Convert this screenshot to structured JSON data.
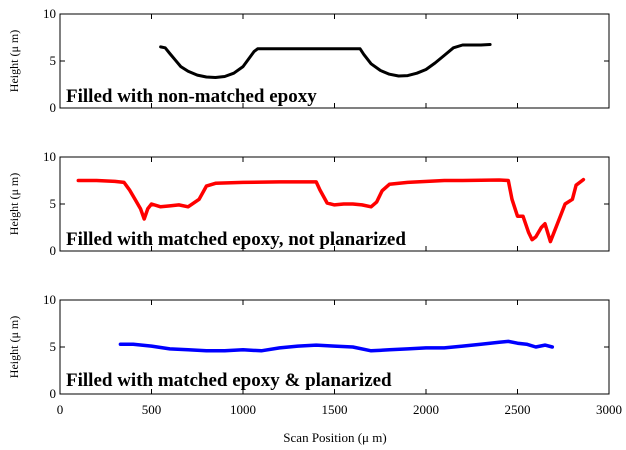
{
  "figure": {
    "xlabel": "Scan Position (μ m)",
    "xticks": [
      "0",
      "500",
      "1000",
      "1500",
      "2000",
      "2500",
      "3000"
    ]
  },
  "chart_data": [
    {
      "type": "line",
      "annotation": "Filled with non-matched epoxy",
      "ylabel": "Height (μ m)",
      "xlim": [
        0,
        3000
      ],
      "ylim": [
        0,
        10
      ],
      "yticks": [
        "0",
        "5",
        "10"
      ],
      "xtick_labels_shown": false,
      "grid": false,
      "series": [
        {
          "color": "#000000",
          "points": [
            [
              550,
              6.5
            ],
            [
              575,
              6.4
            ],
            [
              600,
              5.8
            ],
            [
              630,
              5.1
            ],
            [
              660,
              4.4
            ],
            [
              700,
              3.9
            ],
            [
              750,
              3.5
            ],
            [
              800,
              3.3
            ],
            [
              850,
              3.25
            ],
            [
              900,
              3.35
            ],
            [
              950,
              3.7
            ],
            [
              1000,
              4.4
            ],
            [
              1030,
              5.2
            ],
            [
              1060,
              6.0
            ],
            [
              1080,
              6.3
            ],
            [
              1200,
              6.3
            ],
            [
              1400,
              6.3
            ],
            [
              1550,
              6.3
            ],
            [
              1640,
              6.3
            ],
            [
              1660,
              5.7
            ],
            [
              1700,
              4.7
            ],
            [
              1750,
              4.0
            ],
            [
              1800,
              3.6
            ],
            [
              1850,
              3.4
            ],
            [
              1900,
              3.45
            ],
            [
              1950,
              3.7
            ],
            [
              2000,
              4.1
            ],
            [
              2050,
              4.8
            ],
            [
              2100,
              5.6
            ],
            [
              2150,
              6.4
            ],
            [
              2200,
              6.7
            ],
            [
              2300,
              6.7
            ],
            [
              2350,
              6.75
            ]
          ]
        }
      ]
    },
    {
      "type": "line",
      "annotation": "Filled with matched epoxy, not planarized",
      "ylabel": "Height (μ m)",
      "xlim": [
        0,
        3000
      ],
      "ylim": [
        0,
        10
      ],
      "yticks": [
        "0",
        "5",
        "10"
      ],
      "xtick_labels_shown": false,
      "grid": false,
      "series": [
        {
          "color": "#ff0000",
          "points": [
            [
              100,
              7.5
            ],
            [
              200,
              7.5
            ],
            [
              300,
              7.4
            ],
            [
              350,
              7.3
            ],
            [
              380,
              6.5
            ],
            [
              410,
              5.5
            ],
            [
              440,
              4.5
            ],
            [
              460,
              3.4
            ],
            [
              480,
              4.5
            ],
            [
              500,
              5.0
            ],
            [
              550,
              4.7
            ],
            [
              600,
              4.8
            ],
            [
              650,
              4.9
            ],
            [
              700,
              4.7
            ],
            [
              760,
              5.5
            ],
            [
              800,
              6.9
            ],
            [
              850,
              7.2
            ],
            [
              1000,
              7.3
            ],
            [
              1200,
              7.35
            ],
            [
              1400,
              7.35
            ],
            [
              1420,
              6.5
            ],
            [
              1460,
              5.1
            ],
            [
              1500,
              4.9
            ],
            [
              1550,
              5.0
            ],
            [
              1600,
              5.0
            ],
            [
              1650,
              4.9
            ],
            [
              1700,
              4.7
            ],
            [
              1730,
              5.2
            ],
            [
              1760,
              6.4
            ],
            [
              1800,
              7.1
            ],
            [
              1900,
              7.3
            ],
            [
              2100,
              7.5
            ],
            [
              2200,
              7.5
            ],
            [
              2400,
              7.55
            ],
            [
              2450,
              7.5
            ],
            [
              2470,
              5.5
            ],
            [
              2500,
              3.7
            ],
            [
              2530,
              3.7
            ],
            [
              2560,
              2.0
            ],
            [
              2580,
              1.2
            ],
            [
              2600,
              1.5
            ],
            [
              2630,
              2.5
            ],
            [
              2650,
              2.9
            ],
            [
              2680,
              1.0
            ],
            [
              2700,
              2.0
            ],
            [
              2730,
              3.5
            ],
            [
              2760,
              5.0
            ],
            [
              2800,
              5.5
            ],
            [
              2820,
              7.0
            ],
            [
              2860,
              7.6
            ]
          ]
        }
      ]
    },
    {
      "type": "line",
      "annotation": "Filled with matched epoxy & planarized",
      "ylabel": "Height (μ m)",
      "xlabel": "Scan Position (μ m)",
      "xlim": [
        0,
        3000
      ],
      "ylim": [
        0,
        10
      ],
      "yticks": [
        "0",
        "5",
        "10"
      ],
      "xticks": [
        "0",
        "500",
        "1000",
        "1500",
        "2000",
        "2500",
        "3000"
      ],
      "grid": false,
      "series": [
        {
          "color": "#0000ff",
          "points": [
            [
              330,
              5.3
            ],
            [
              400,
              5.3
            ],
            [
              500,
              5.1
            ],
            [
              600,
              4.8
            ],
            [
              700,
              4.7
            ],
            [
              800,
              4.6
            ],
            [
              900,
              4.6
            ],
            [
              1000,
              4.7
            ],
            [
              1100,
              4.6
            ],
            [
              1200,
              4.9
            ],
            [
              1300,
              5.1
            ],
            [
              1400,
              5.2
            ],
            [
              1500,
              5.1
            ],
            [
              1600,
              5.0
            ],
            [
              1700,
              4.6
            ],
            [
              1800,
              4.7
            ],
            [
              1900,
              4.8
            ],
            [
              2000,
              4.9
            ],
            [
              2100,
              4.9
            ],
            [
              2200,
              5.1
            ],
            [
              2300,
              5.3
            ],
            [
              2400,
              5.5
            ],
            [
              2450,
              5.6
            ],
            [
              2500,
              5.4
            ],
            [
              2550,
              5.3
            ],
            [
              2600,
              5.0
            ],
            [
              2650,
              5.2
            ],
            [
              2690,
              5.0
            ]
          ]
        }
      ]
    }
  ]
}
